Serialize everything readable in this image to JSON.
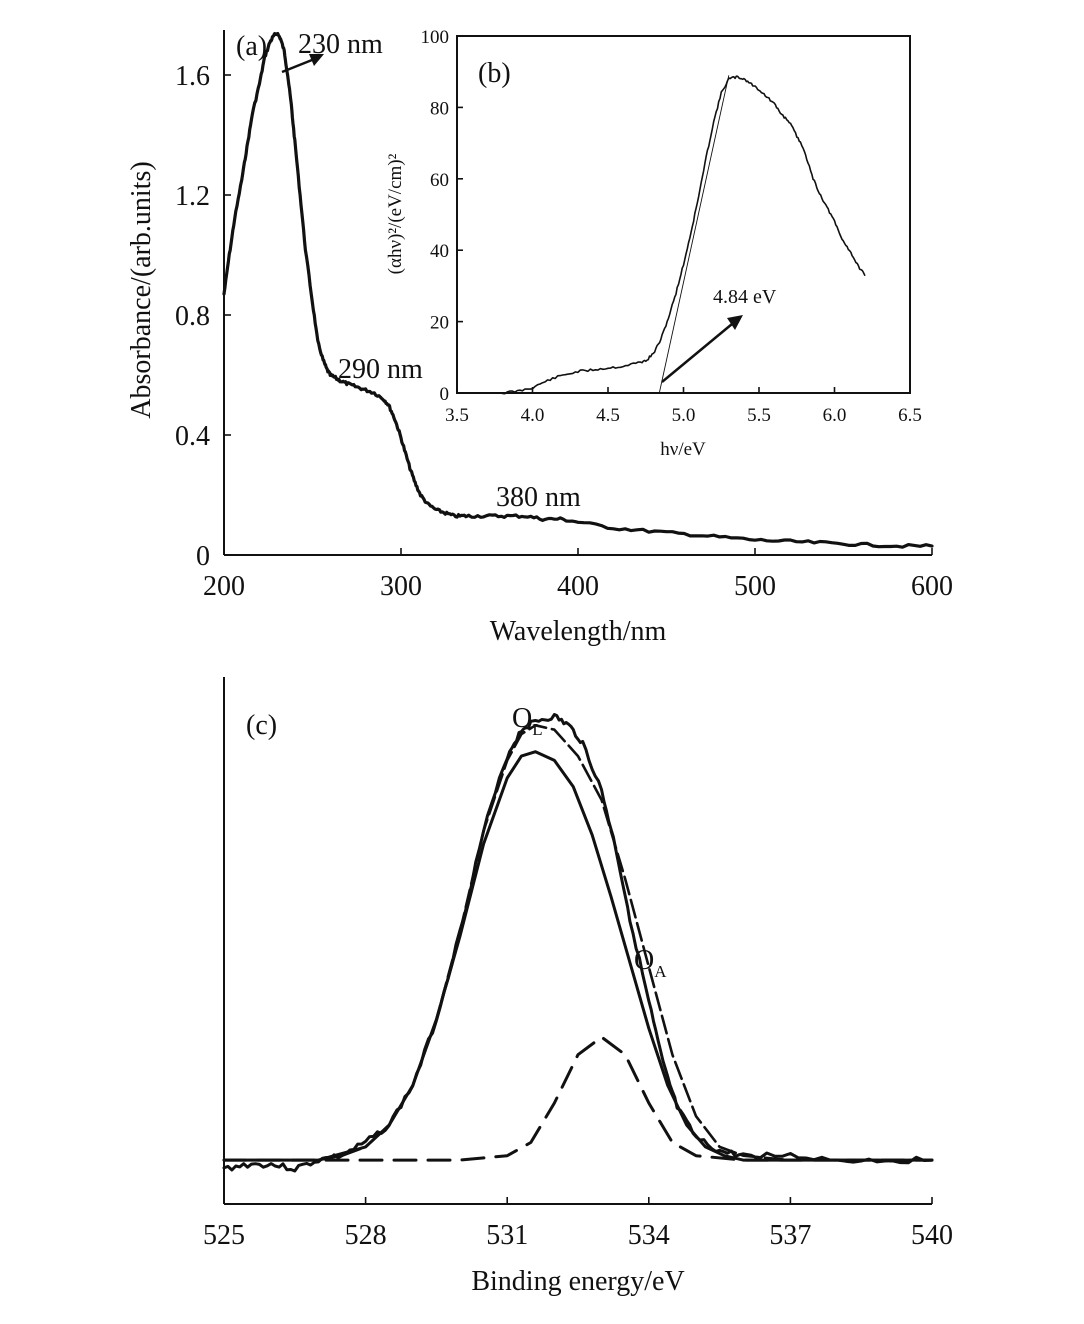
{
  "figure": {
    "panel_a_label": "(a)",
    "panel_b_label": "(b)",
    "panel_c_label": "(c)"
  },
  "chart_data": [
    {
      "id": "a",
      "type": "line",
      "panel_label": "(a)",
      "title": "",
      "xlabel": "Wavelength/nm",
      "ylabel": "Absorbance/(arb.units)",
      "xlim": [
        200,
        600
      ],
      "ylim": [
        0,
        1.75
      ],
      "xticks": [
        200,
        300,
        400,
        500,
        600
      ],
      "xtick_labels": [
        "200",
        "300",
        "400",
        "500",
        "600"
      ],
      "yticks": [
        0,
        0.4,
        0.8,
        1.2,
        1.6
      ],
      "ytick_labels": [
        "0",
        "0.4",
        "0.8",
        "1.2",
        "1.6"
      ],
      "grid": false,
      "series": [
        {
          "x": [
            200,
            203,
            206,
            210,
            213,
            216,
            220,
            223,
            226,
            228,
            230,
            232,
            234,
            236,
            238,
            240,
            243,
            246,
            250,
            253,
            256,
            258,
            260,
            263,
            266,
            270,
            275,
            280,
            285,
            290,
            293,
            296,
            299,
            302,
            305,
            308,
            311,
            315,
            320,
            325,
            330,
            335,
            340,
            350,
            360,
            370,
            380,
            390,
            400,
            420,
            440,
            460,
            480,
            500,
            520,
            540,
            560,
            580,
            600
          ],
          "y": [
            0.87,
            1.0,
            1.12,
            1.25,
            1.36,
            1.47,
            1.57,
            1.66,
            1.71,
            1.73,
            1.74,
            1.72,
            1.68,
            1.6,
            1.5,
            1.38,
            1.2,
            1.02,
            0.84,
            0.71,
            0.65,
            0.62,
            0.6,
            0.59,
            0.58,
            0.57,
            0.56,
            0.55,
            0.54,
            0.52,
            0.5,
            0.46,
            0.41,
            0.35,
            0.29,
            0.24,
            0.2,
            0.17,
            0.15,
            0.14,
            0.13,
            0.13,
            0.13,
            0.13,
            0.13,
            0.13,
            0.12,
            0.12,
            0.11,
            0.09,
            0.08,
            0.07,
            0.06,
            0.05,
            0.045,
            0.04,
            0.035,
            0.03,
            0.03
          ]
        }
      ],
      "annotations": [
        {
          "text": "230 nm",
          "x": 230,
          "y": 1.74,
          "arrow": true
        },
        {
          "text": "290 nm",
          "x": 290,
          "y": 0.55
        },
        {
          "text": "380 nm",
          "x": 380,
          "y": 0.13
        }
      ]
    },
    {
      "id": "b",
      "type": "line",
      "panel_label": "(b)",
      "title": "",
      "xlabel": "hν/eV",
      "ylabel": "(αhν)²/(eV/cm)²",
      "xlim": [
        3.5,
        6.5
      ],
      "ylim": [
        0,
        100
      ],
      "xticks": [
        3.5,
        4.0,
        4.5,
        5.0,
        5.5,
        6.0,
        6.5
      ],
      "xtick_labels": [
        "3.5",
        "4.0",
        "4.5",
        "5.0",
        "5.5",
        "6.0",
        "6.5"
      ],
      "yticks": [
        0,
        20,
        40,
        60,
        80,
        100
      ],
      "ytick_labels": [
        "0",
        "20",
        "40",
        "60",
        "80",
        "100"
      ],
      "grid": false,
      "series": [
        {
          "x": [
            3.8,
            3.9,
            4.0,
            4.1,
            4.2,
            4.3,
            4.4,
            4.5,
            4.6,
            4.7,
            4.75,
            4.8,
            4.85,
            4.9,
            4.95,
            5.0,
            5.05,
            5.1,
            5.15,
            5.2,
            5.25,
            5.3,
            5.35,
            5.4,
            5.45,
            5.5,
            5.55,
            5.6,
            5.65,
            5.7,
            5.75,
            5.8,
            5.85,
            5.9,
            5.95,
            6.0,
            6.05,
            6.1,
            6.15,
            6.2
          ],
          "y": [
            0,
            0.5,
            1.5,
            3.5,
            5,
            6,
            6.5,
            7,
            7.5,
            8.5,
            9,
            11,
            15,
            21,
            28,
            36,
            45,
            55,
            66,
            76,
            84,
            88,
            88.5,
            88,
            86.5,
            85,
            83,
            81,
            78,
            76,
            72,
            68,
            61,
            56,
            52,
            48,
            43,
            40,
            36,
            33
          ]
        }
      ],
      "tangent": {
        "x": [
          4.84,
          5.3
        ],
        "y": [
          0,
          89
        ]
      },
      "annotations": [
        {
          "text": "4.84 eV",
          "x": 4.84,
          "y": 0,
          "arrow": true
        }
      ]
    },
    {
      "id": "c",
      "type": "line",
      "panel_label": "(c)",
      "title": "",
      "xlabel": "Binding energy/eV",
      "ylabel": "",
      "xlim": [
        525,
        540
      ],
      "ylim": [
        -0.1,
        1.1
      ],
      "xticks": [
        525,
        528,
        531,
        534,
        537,
        540
      ],
      "xtick_labels": [
        "525",
        "528",
        "531",
        "534",
        "537",
        "540"
      ],
      "grid": false,
      "series": [
        {
          "style": "measured",
          "x": [
            525,
            525.5,
            526,
            526.5,
            527,
            527.5,
            528,
            528.5,
            529,
            529.5,
            530,
            530.5,
            531,
            531.3,
            531.6,
            532,
            532.3,
            532.6,
            533,
            533.3,
            533.6,
            534,
            534.3,
            534.6,
            535,
            535.5,
            536,
            537,
            538,
            539,
            540
          ],
          "y": [
            -0.02,
            -0.01,
            -0.01,
            -0.02,
            0.0,
            0.01,
            0.04,
            0.08,
            0.17,
            0.32,
            0.52,
            0.75,
            0.92,
            0.98,
            1.0,
            1.01,
            0.99,
            0.95,
            0.84,
            0.71,
            0.55,
            0.36,
            0.22,
            0.12,
            0.05,
            0.02,
            0.01,
            0.01,
            0.0,
            0.0,
            0.0
          ]
        },
        {
          "style": "fit",
          "x": [
            525,
            526,
            527,
            527.5,
            528,
            528.5,
            529,
            529.5,
            530,
            530.5,
            531,
            531.3,
            531.6,
            532,
            532.5,
            533,
            533.5,
            534,
            534.5,
            535,
            535.5,
            536,
            537,
            538,
            539,
            540
          ],
          "y": [
            0.0,
            0.0,
            0.0,
            0.01,
            0.03,
            0.08,
            0.17,
            0.32,
            0.52,
            0.75,
            0.91,
            0.97,
            0.99,
            0.98,
            0.92,
            0.82,
            0.64,
            0.44,
            0.24,
            0.1,
            0.03,
            0.01,
            0.0,
            0.0,
            0.0,
            0.0
          ]
        },
        {
          "style": "O_L component",
          "x": [
            525,
            527,
            528,
            528.5,
            529,
            529.5,
            530,
            530.5,
            531,
            531.3,
            531.6,
            532,
            532.4,
            532.8,
            533.2,
            533.6,
            534,
            534.4,
            534.8,
            535.2,
            535.6,
            536,
            537,
            540
          ],
          "y": [
            0.0,
            0.0,
            0.03,
            0.08,
            0.17,
            0.32,
            0.51,
            0.72,
            0.87,
            0.92,
            0.93,
            0.91,
            0.85,
            0.74,
            0.6,
            0.45,
            0.3,
            0.17,
            0.08,
            0.03,
            0.01,
            0.0,
            0.0,
            0.0
          ]
        },
        {
          "style": "O_A component",
          "x": [
            525,
            530,
            531,
            531.5,
            532,
            532.5,
            533,
            533.5,
            534,
            534.5,
            535,
            536,
            540
          ],
          "y": [
            0.0,
            0.0,
            0.01,
            0.04,
            0.13,
            0.24,
            0.28,
            0.24,
            0.13,
            0.04,
            0.01,
            0.0,
            0.0
          ]
        }
      ],
      "annotations": [
        {
          "text": "O",
          "subscript": "L",
          "x": 531.8,
          "y": 1.03
        },
        {
          "text": "O",
          "subscript": "A",
          "x": 534,
          "y": 0.57
        }
      ]
    }
  ]
}
